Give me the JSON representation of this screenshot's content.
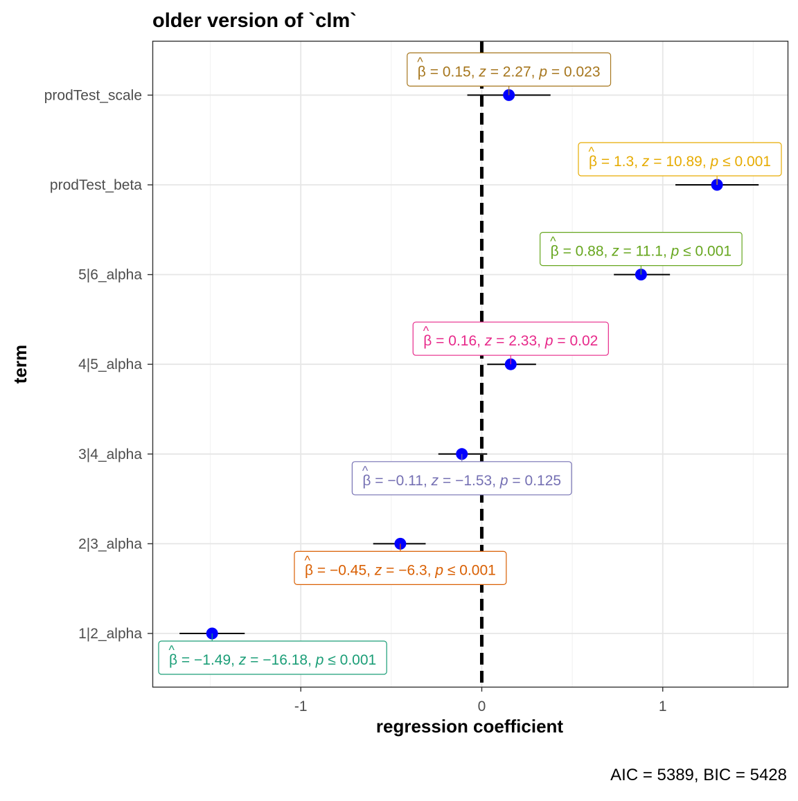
{
  "chart_data": {
    "type": "scatter",
    "title": "older version of `clm`",
    "xlabel": "regression coefficient",
    "ylabel": "term",
    "caption": "AIC = 5389, BIC = 5428",
    "xlim": [
      -1.82,
      1.69
    ],
    "x_ticks": [
      "-1",
      "0",
      "1"
    ],
    "x_tick_values": [
      -1,
      0,
      1
    ],
    "reference_line": 0,
    "grid": true,
    "point_color": "#0000FF",
    "terms": [
      {
        "term": "prodTest_scale",
        "estimate": 0.15,
        "conf_low": -0.08,
        "conf_high": 0.38,
        "label_color": "#A6761D",
        "beta": "0.15",
        "z": "2.27",
        "p_op": "=",
        "p": "0.023",
        "label_side": "above"
      },
      {
        "term": "prodTest_beta",
        "estimate": 1.3,
        "conf_low": 1.07,
        "conf_high": 1.53,
        "label_color": "#E6AB02",
        "beta": "1.3",
        "z": "10.89",
        "p_op": "≤",
        "p": "0.001",
        "label_side": "above"
      },
      {
        "term": "5|6_alpha",
        "estimate": 0.88,
        "conf_low": 0.73,
        "conf_high": 1.04,
        "label_color": "#66A61E",
        "beta": "0.88",
        "z": "11.1",
        "p_op": "≤",
        "p": "0.001",
        "label_side": "above"
      },
      {
        "term": "4|5_alpha",
        "estimate": 0.16,
        "conf_low": 0.03,
        "conf_high": 0.3,
        "label_color": "#E7298A",
        "beta": "0.16",
        "z": "2.33",
        "p_op": "=",
        "p": "0.02",
        "label_side": "above"
      },
      {
        "term": "3|4_alpha",
        "estimate": -0.11,
        "conf_low": -0.24,
        "conf_high": 0.03,
        "label_color": "#7570B3",
        "beta": "−0.11",
        "z": "−1.53",
        "p_op": "=",
        "p": "0.125",
        "label_side": "below"
      },
      {
        "term": "2|3_alpha",
        "estimate": -0.45,
        "conf_low": -0.6,
        "conf_high": -0.31,
        "label_color": "#D95F02",
        "beta": "−0.45",
        "z": "−6.3",
        "p_op": "≤",
        "p": "0.001",
        "label_side": "below"
      },
      {
        "term": "1|2_alpha",
        "estimate": -1.49,
        "conf_low": -1.67,
        "conf_high": -1.31,
        "label_color": "#1B9E77",
        "beta": "−1.49",
        "z": "−16.18",
        "p_op": "≤",
        "p": "0.001",
        "label_side": "below"
      }
    ]
  }
}
